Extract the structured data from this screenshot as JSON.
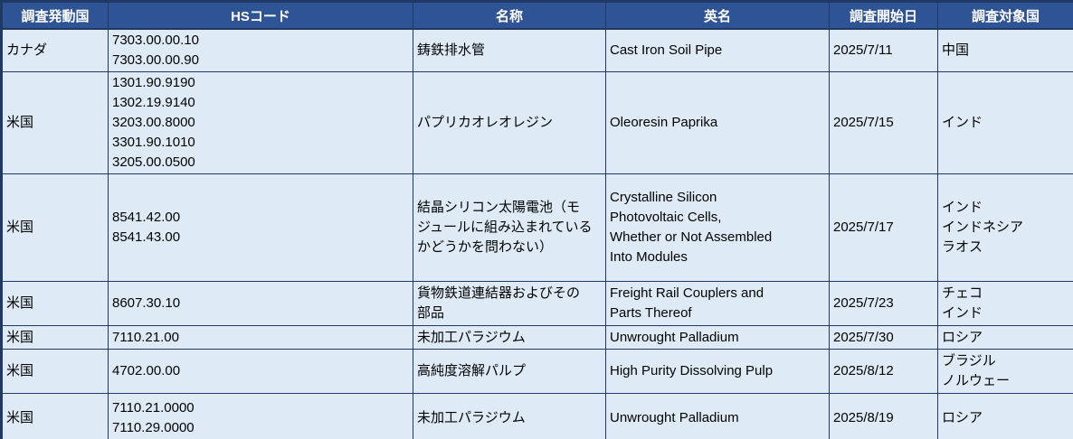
{
  "colors": {
    "header_bg": "#2F5496",
    "header_text": "#FFFFFF",
    "cell_bg": "#DEEBF7",
    "grid_border": "#1F3864",
    "cell_text": "#000000"
  },
  "table": {
    "headers": [
      "調査発動国",
      "HSコード",
      "名称",
      "英名",
      "調査開始日",
      "調査対象国"
    ],
    "rows": [
      {
        "country": "カナダ",
        "hs_codes": [
          "7303.00.00.10",
          "7303.00.00.90"
        ],
        "name_ja": "鋳鉄排水管",
        "name_en": "Cast Iron Soil Pipe",
        "start_date": "2025/7/11",
        "target_countries": [
          "中国"
        ]
      },
      {
        "country": "米国",
        "hs_codes": [
          "1301.90.9190",
          "1302.19.9140",
          "3203.00.8000",
          "3301.90.1010",
          "3205.00.0500"
        ],
        "name_ja": "パプリカオレオレジン",
        "name_en": "Oleoresin Paprika",
        "start_date": "2025/7/15",
        "target_countries": [
          "インド"
        ]
      },
      {
        "country": "米国",
        "hs_codes": [
          "8541.42.00",
          "8541.43.00"
        ],
        "name_ja": "結晶シリコン太陽電池（モ\nジュールに組み込まれている\nかどうかを問わない）",
        "name_en": "Crystalline Silicon\nPhotovoltaic Cells,\nWhether or Not Assembled\nInto Modules",
        "start_date": "2025/7/17",
        "target_countries": [
          "インド",
          "インドネシア",
          "ラオス"
        ]
      },
      {
        "country": "米国",
        "hs_codes": [
          "8607.30.10"
        ],
        "name_ja": "貨物鉄道連結器およびその\n部品",
        "name_en": "Freight Rail Couplers and\nParts Thereof",
        "start_date": "2025/7/23",
        "target_countries": [
          "チェコ",
          "インド"
        ]
      },
      {
        "country": "米国",
        "hs_codes": [
          "7110.21.00"
        ],
        "name_ja": "未加工パラジウム",
        "name_en": "Unwrought Palladium",
        "start_date": "2025/7/30",
        "target_countries": [
          "ロシア"
        ]
      },
      {
        "country": "米国",
        "hs_codes": [
          "4702.00.00"
        ],
        "name_ja": "高純度溶解パルプ",
        "name_en": "High Purity Dissolving Pulp",
        "start_date": "2025/8/12",
        "target_countries": [
          "ブラジル",
          "ノルウェー"
        ]
      },
      {
        "country": "米国",
        "hs_codes": [
          "7110.21.0000",
          "7110.29.0000"
        ],
        "name_ja": "未加工パラジウム",
        "name_en": "Unwrought Palladium",
        "start_date": "2025/8/19",
        "target_countries": [
          "ロシア"
        ]
      }
    ]
  }
}
